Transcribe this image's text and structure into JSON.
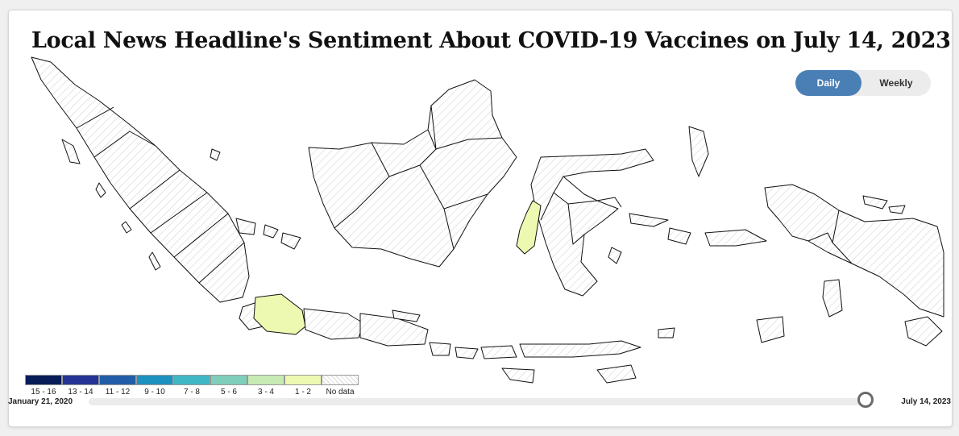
{
  "title": "Local News Headline's Sentiment About COVID-19 Vaccines on July 14, 2023",
  "toggle": {
    "daily_label": "Daily",
    "weekly_label": "Weekly",
    "selected": "daily",
    "active_color": "#4a7fb5"
  },
  "legend": [
    {
      "label": "15 - 16",
      "color": "#081d58"
    },
    {
      "label": "13 - 14",
      "color": "#253494"
    },
    {
      "label": "11 - 12",
      "color": "#225ea8"
    },
    {
      "label": "9 - 10",
      "color": "#1d91c0"
    },
    {
      "label": "7 - 8",
      "color": "#41b6c4"
    },
    {
      "label": "5 - 6",
      "color": "#7fcdbb"
    },
    {
      "label": "3 - 4",
      "color": "#c7e9b4"
    },
    {
      "label": "1 - 2",
      "color": "#edf8b1"
    },
    {
      "label": "No data",
      "color": "hatched"
    }
  ],
  "regions_with_data": [
    {
      "region": "West Java",
      "range": "1 - 2"
    },
    {
      "region": "West Sulawesi",
      "range": "1 - 2"
    }
  ],
  "slider": {
    "start_label": "January 21, 2020",
    "end_label": "July 14, 2023",
    "position": 1.0
  }
}
